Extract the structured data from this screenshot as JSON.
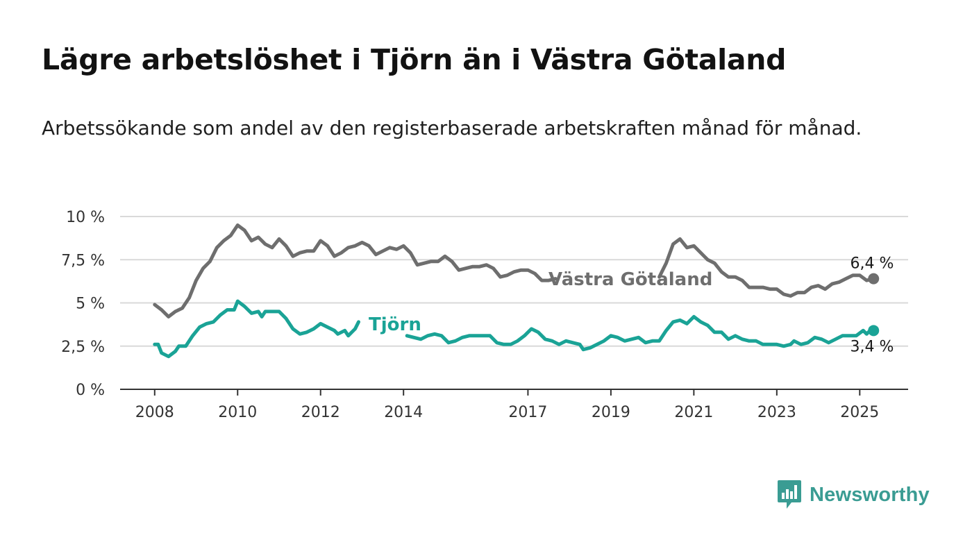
{
  "header": {
    "title": "Lägre arbetslöshet i Tjörn än i Västra Götaland",
    "subtitle": "Arbetssökande som andel av den registerbaserade arbetskraften månad för månad."
  },
  "brand": {
    "name": "Newsworthy",
    "icon": "newsworthy-logo-icon",
    "color": "#3a9c93"
  },
  "chart_data": {
    "type": "line",
    "title": "Lägre arbetslöshet i Tjörn än i Västra Götaland",
    "subtitle": "Arbetssökande som andel av den registerbaserade arbetskraften månad för månad.",
    "xlabel": "",
    "ylabel": "",
    "x_ticks": [
      "2008",
      "2010",
      "2012",
      "2014",
      "2017",
      "2019",
      "2021",
      "2023",
      "2025"
    ],
    "y_ticks": [
      "0 %",
      "2,5 %",
      "5 %",
      "7,5 %",
      "10 %"
    ],
    "ylim": [
      0,
      10
    ],
    "xlim": [
      "2007-03",
      "2026-03"
    ],
    "grid": true,
    "series": [
      {
        "name": "Västra Götaland",
        "color": "#6e6e6e",
        "end_label": "6,4 %",
        "gap": [
          "2017-09",
          "2020-03"
        ],
        "points": [
          [
            "2008-01",
            4.9
          ],
          [
            "2008-03",
            4.6
          ],
          [
            "2008-05",
            4.2
          ],
          [
            "2008-07",
            4.5
          ],
          [
            "2008-09",
            4.7
          ],
          [
            "2008-11",
            5.3
          ],
          [
            "2009-01",
            6.3
          ],
          [
            "2009-03",
            7.0
          ],
          [
            "2009-05",
            7.4
          ],
          [
            "2009-07",
            8.2
          ],
          [
            "2009-09",
            8.6
          ],
          [
            "2009-11",
            8.9
          ],
          [
            "2010-01",
            9.5
          ],
          [
            "2010-03",
            9.2
          ],
          [
            "2010-05",
            8.6
          ],
          [
            "2010-07",
            8.8
          ],
          [
            "2010-09",
            8.4
          ],
          [
            "2010-11",
            8.2
          ],
          [
            "2011-01",
            8.7
          ],
          [
            "2011-03",
            8.3
          ],
          [
            "2011-05",
            7.7
          ],
          [
            "2011-07",
            7.9
          ],
          [
            "2011-09",
            8.0
          ],
          [
            "2011-11",
            8.0
          ],
          [
            "2012-01",
            8.6
          ],
          [
            "2012-03",
            8.3
          ],
          [
            "2012-05",
            7.7
          ],
          [
            "2012-07",
            7.9
          ],
          [
            "2012-09",
            8.2
          ],
          [
            "2012-11",
            8.3
          ],
          [
            "2013-01",
            8.5
          ],
          [
            "2013-03",
            8.3
          ],
          [
            "2013-05",
            7.8
          ],
          [
            "2013-07",
            8.0
          ],
          [
            "2013-09",
            8.2
          ],
          [
            "2013-11",
            8.1
          ],
          [
            "2014-01",
            8.3
          ],
          [
            "2014-03",
            7.9
          ],
          [
            "2014-05",
            7.2
          ],
          [
            "2014-07",
            7.3
          ],
          [
            "2014-09",
            7.4
          ],
          [
            "2014-11",
            7.4
          ],
          [
            "2015-01",
            7.7
          ],
          [
            "2015-03",
            7.4
          ],
          [
            "2015-05",
            6.9
          ],
          [
            "2015-07",
            7.0
          ],
          [
            "2015-09",
            7.1
          ],
          [
            "2015-11",
            7.1
          ],
          [
            "2016-01",
            7.2
          ],
          [
            "2016-03",
            7.0
          ],
          [
            "2016-05",
            6.5
          ],
          [
            "2016-07",
            6.6
          ],
          [
            "2016-09",
            6.8
          ],
          [
            "2016-11",
            6.9
          ],
          [
            "2017-01",
            6.9
          ],
          [
            "2017-03",
            6.7
          ],
          [
            "2017-05",
            6.3
          ],
          [
            "2017-07",
            6.3
          ],
          [
            "2017-09",
            6.4
          ],
          [
            "2020-03",
            6.5
          ],
          [
            "2020-05",
            7.3
          ],
          [
            "2020-07",
            8.4
          ],
          [
            "2020-09",
            8.7
          ],
          [
            "2020-11",
            8.2
          ],
          [
            "2021-01",
            8.3
          ],
          [
            "2021-03",
            7.9
          ],
          [
            "2021-05",
            7.5
          ],
          [
            "2021-07",
            7.3
          ],
          [
            "2021-09",
            6.8
          ],
          [
            "2021-11",
            6.5
          ],
          [
            "2022-01",
            6.5
          ],
          [
            "2022-03",
            6.3
          ],
          [
            "2022-05",
            5.9
          ],
          [
            "2022-07",
            5.9
          ],
          [
            "2022-09",
            5.9
          ],
          [
            "2022-11",
            5.8
          ],
          [
            "2023-01",
            5.8
          ],
          [
            "2023-03",
            5.5
          ],
          [
            "2023-05",
            5.4
          ],
          [
            "2023-07",
            5.6
          ],
          [
            "2023-09",
            5.6
          ],
          [
            "2023-11",
            5.9
          ],
          [
            "2024-01",
            6.0
          ],
          [
            "2024-03",
            5.8
          ],
          [
            "2024-05",
            6.1
          ],
          [
            "2024-07",
            6.2
          ],
          [
            "2024-09",
            6.4
          ],
          [
            "2024-11",
            6.6
          ],
          [
            "2025-01",
            6.6
          ],
          [
            "2025-03",
            6.3
          ],
          [
            "2025-05",
            6.4
          ]
        ]
      },
      {
        "name": "Tjörn",
        "color": "#1aa396",
        "end_label": "3,4 %",
        "gap": [
          "2012-12",
          "2014-02"
        ],
        "points": [
          [
            "2008-01",
            2.6
          ],
          [
            "2008-02",
            2.6
          ],
          [
            "2008-03",
            2.1
          ],
          [
            "2008-05",
            1.9
          ],
          [
            "2008-07",
            2.2
          ],
          [
            "2008-08",
            2.5
          ],
          [
            "2008-10",
            2.5
          ],
          [
            "2008-12",
            3.1
          ],
          [
            "2009-02",
            3.6
          ],
          [
            "2009-04",
            3.8
          ],
          [
            "2009-06",
            3.9
          ],
          [
            "2009-08",
            4.3
          ],
          [
            "2009-10",
            4.6
          ],
          [
            "2009-12",
            4.6
          ],
          [
            "2010-01",
            5.1
          ],
          [
            "2010-03",
            4.8
          ],
          [
            "2010-05",
            4.4
          ],
          [
            "2010-07",
            4.5
          ],
          [
            "2010-08",
            4.2
          ],
          [
            "2010-09",
            4.5
          ],
          [
            "2010-11",
            4.5
          ],
          [
            "2011-01",
            4.5
          ],
          [
            "2011-03",
            4.1
          ],
          [
            "2011-05",
            3.5
          ],
          [
            "2011-07",
            3.2
          ],
          [
            "2011-09",
            3.3
          ],
          [
            "2011-11",
            3.5
          ],
          [
            "2012-01",
            3.8
          ],
          [
            "2012-03",
            3.6
          ],
          [
            "2012-05",
            3.4
          ],
          [
            "2012-06",
            3.2
          ],
          [
            "2012-08",
            3.4
          ],
          [
            "2012-09",
            3.1
          ],
          [
            "2012-11",
            3.5
          ],
          [
            "2012-12",
            3.9
          ],
          [
            "2014-02",
            3.1
          ],
          [
            "2014-04",
            3.0
          ],
          [
            "2014-06",
            2.9
          ],
          [
            "2014-08",
            3.1
          ],
          [
            "2014-10",
            3.2
          ],
          [
            "2014-12",
            3.1
          ],
          [
            "2015-02",
            2.7
          ],
          [
            "2015-04",
            2.8
          ],
          [
            "2015-06",
            3.0
          ],
          [
            "2015-08",
            3.1
          ],
          [
            "2015-10",
            3.1
          ],
          [
            "2015-12",
            3.1
          ],
          [
            "2016-02",
            3.1
          ],
          [
            "2016-04",
            2.7
          ],
          [
            "2016-06",
            2.6
          ],
          [
            "2016-08",
            2.6
          ],
          [
            "2016-10",
            2.8
          ],
          [
            "2016-12",
            3.1
          ],
          [
            "2017-02",
            3.5
          ],
          [
            "2017-04",
            3.3
          ],
          [
            "2017-06",
            2.9
          ],
          [
            "2017-08",
            2.8
          ],
          [
            "2017-10",
            2.6
          ],
          [
            "2017-12",
            2.8
          ],
          [
            "2018-02",
            2.7
          ],
          [
            "2018-04",
            2.6
          ],
          [
            "2018-05",
            2.3
          ],
          [
            "2018-07",
            2.4
          ],
          [
            "2018-09",
            2.6
          ],
          [
            "2018-11",
            2.8
          ],
          [
            "2019-01",
            3.1
          ],
          [
            "2019-03",
            3.0
          ],
          [
            "2019-05",
            2.8
          ],
          [
            "2019-07",
            2.9
          ],
          [
            "2019-09",
            3.0
          ],
          [
            "2019-11",
            2.7
          ],
          [
            "2020-01",
            2.8
          ],
          [
            "2020-03",
            2.8
          ],
          [
            "2020-05",
            3.4
          ],
          [
            "2020-07",
            3.9
          ],
          [
            "2020-09",
            4.0
          ],
          [
            "2020-11",
            3.8
          ],
          [
            "2021-01",
            4.2
          ],
          [
            "2021-03",
            3.9
          ],
          [
            "2021-05",
            3.7
          ],
          [
            "2021-07",
            3.3
          ],
          [
            "2021-09",
            3.3
          ],
          [
            "2021-11",
            2.9
          ],
          [
            "2022-01",
            3.1
          ],
          [
            "2022-03",
            2.9
          ],
          [
            "2022-05",
            2.8
          ],
          [
            "2022-07",
            2.8
          ],
          [
            "2022-09",
            2.6
          ],
          [
            "2022-11",
            2.6
          ],
          [
            "2023-01",
            2.6
          ],
          [
            "2023-03",
            2.5
          ],
          [
            "2023-05",
            2.6
          ],
          [
            "2023-06",
            2.8
          ],
          [
            "2023-08",
            2.6
          ],
          [
            "2023-10",
            2.7
          ],
          [
            "2023-12",
            3.0
          ],
          [
            "2024-02",
            2.9
          ],
          [
            "2024-04",
            2.7
          ],
          [
            "2024-06",
            2.9
          ],
          [
            "2024-08",
            3.1
          ],
          [
            "2024-10",
            3.1
          ],
          [
            "2024-12",
            3.1
          ],
          [
            "2025-02",
            3.4
          ],
          [
            "2025-03",
            3.2
          ],
          [
            "2025-04",
            3.4
          ],
          [
            "2025-05",
            3.4
          ]
        ]
      }
    ]
  }
}
